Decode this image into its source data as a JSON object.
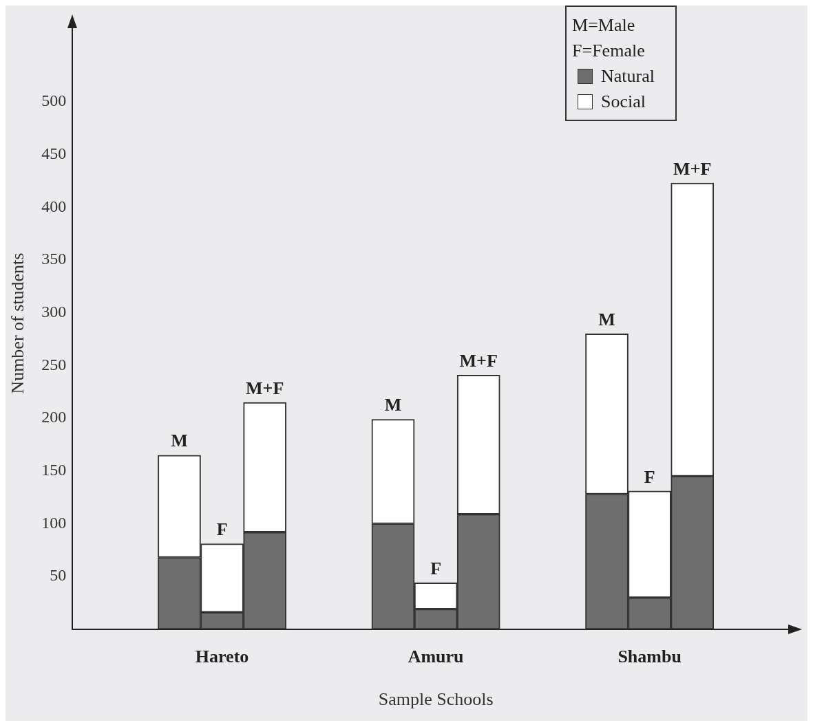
{
  "chart_data": {
    "type": "bar",
    "stacked": true,
    "xlabel": "Sample Schools",
    "ylabel": "Number of students",
    "legend_title": "M=Male\nF=Female",
    "legend": "top right",
    "categories": [
      null,
      null,
      "M",
      "F",
      "M+F",
      null,
      null,
      "M",
      "F",
      "M+F",
      null,
      null,
      "M",
      "F",
      "M+F",
      null,
      null
    ],
    "series": [
      {
        "name": "Natural",
        "color": "#6e6e6e",
        "values": [
          null,
          null,
          68,
          16,
          92,
          null,
          null,
          100,
          19,
          109,
          null,
          null,
          128,
          30,
          145,
          null,
          null
        ]
      },
      {
        "name": "Social",
        "color": "#ffffff",
        "values": [
          null,
          null,
          97,
          65,
          123,
          null,
          null,
          99,
          25,
          132,
          null,
          null,
          152,
          101,
          278,
          null,
          null
        ]
      }
    ],
    "ylim": [
      0,
      580
    ],
    "yticks": [
      50,
      100,
      150,
      200,
      250,
      300,
      350,
      400,
      450,
      500
    ],
    "grid": false,
    "annotations": [
      "Hareto",
      "Amuru",
      "Shambu"
    ]
  }
}
